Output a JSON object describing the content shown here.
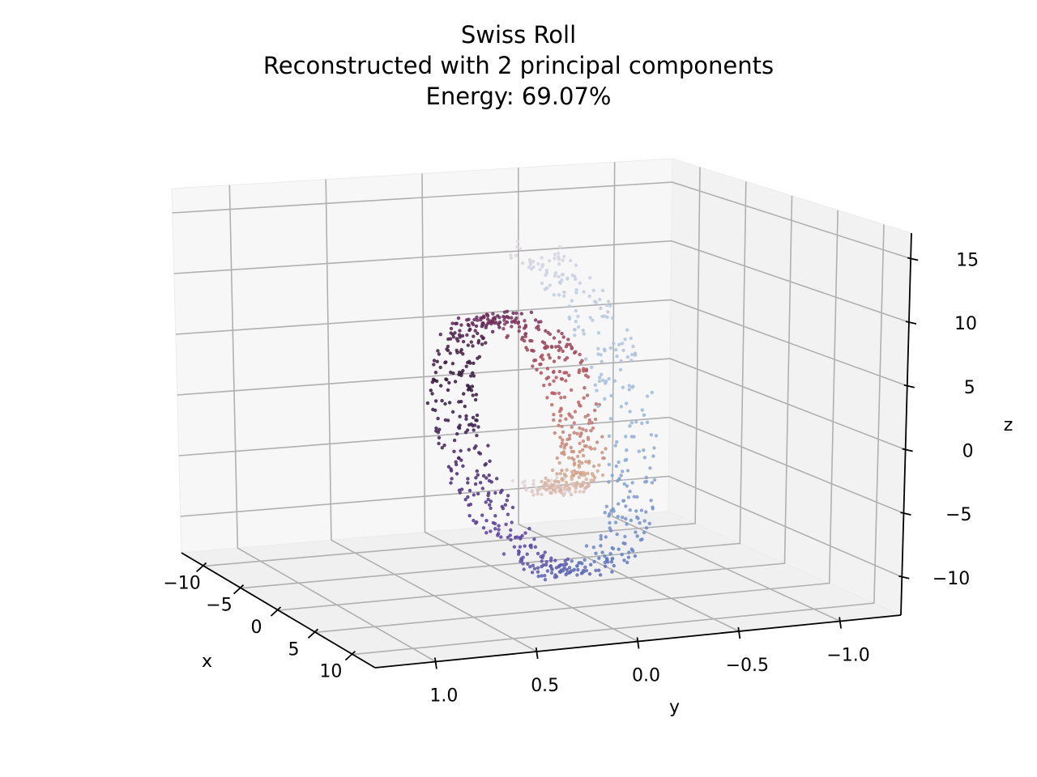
{
  "chart_data": {
    "type": "scatter3d",
    "title": "Swiss Roll",
    "subtitle": "Reconstructed with 2 principal components",
    "energy_label": "Energy: 69.07%",
    "energy_percent": 69.07,
    "xlabel": "x",
    "ylabel": "y",
    "zlabel": "z",
    "xlim": [
      -13,
      13
    ],
    "ylim": [
      -1.3,
      1.3
    ],
    "zlim": [
      -13,
      17
    ],
    "x_ticks": [
      10,
      5,
      0,
      -5,
      -10
    ],
    "x_tick_labels": [
      "10",
      "5",
      "0",
      "−5",
      "−10"
    ],
    "y_ticks": [
      1.0,
      0.5,
      0.0,
      -0.5,
      -1.0
    ],
    "y_tick_labels": [
      "1.0",
      "0.5",
      "0.0",
      "−0.5",
      "−1.0"
    ],
    "z_ticks": [
      15,
      10,
      5,
      0,
      -5,
      -10
    ],
    "z_tick_labels": [
      "15",
      "10",
      "5",
      "0",
      "−5",
      "−10"
    ],
    "grid": true,
    "colormap": "twilight_shifted",
    "color_stops": [
      "#e2d9e2",
      "#9ebcd9",
      "#5f7bbf",
      "#5a3d9e",
      "#2f1436",
      "#6b2a5c",
      "#b4535d",
      "#d3a78b",
      "#e2d9e2"
    ],
    "point_count": 1000,
    "point_structure": "Swiss roll spiral: t from 4.7 to 14.1 rad, x = t·cos(t), z = t·sin(t), y nearly flattened near 0 after projection onto 2 principal components"
  }
}
